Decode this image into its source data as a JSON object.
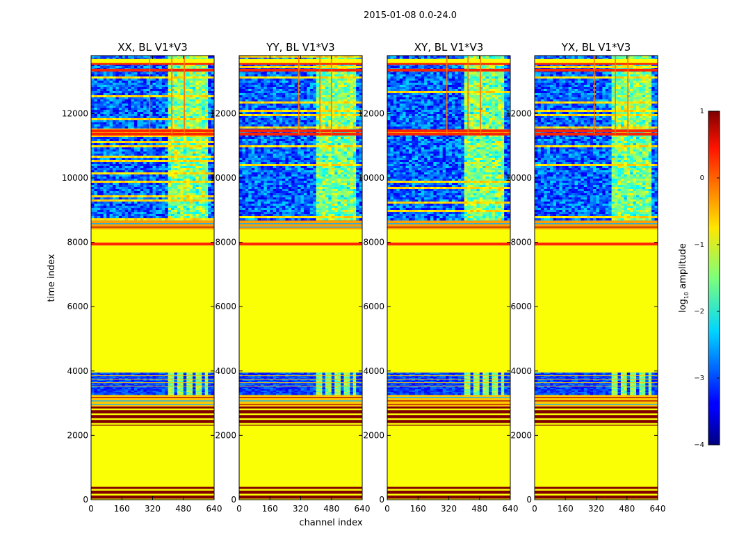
{
  "chart_data": {
    "type": "heatmap",
    "suptitle": "2015-01-08 0.0-24.0",
    "xlabel": "channel index",
    "ylabel": "time index",
    "x_ticks": [
      0,
      160,
      320,
      480,
      640
    ],
    "y_ticks": [
      0,
      2000,
      4000,
      6000,
      8000,
      10000,
      12000
    ],
    "xlim": [
      0,
      640
    ],
    "ylim": [
      0,
      13800
    ],
    "colormap": "jet",
    "colorbar": {
      "label": "log10 amplitude",
      "label_base": "log",
      "label_sub": "10",
      "label_rest": " amplitude",
      "range": [
        -4,
        1
      ],
      "ticks": [
        1,
        0,
        -1,
        -2,
        -3,
        -4
      ],
      "tick_labels": [
        "1",
        "0",
        "−1",
        "−2",
        "−3",
        "−4"
      ]
    },
    "panels": [
      {
        "title": "XX, BL V1*V3",
        "y_labels": [
          "0",
          "2000",
          "4000",
          "6000",
          "8000",
          "10000",
          "12000"
        ],
        "feature_channels": [
          305,
          420,
          485
        ]
      },
      {
        "title": "YY, BL V1*V3",
        "y_labels": [
          "0",
          "2000",
          "4000",
          "6000",
          "8000",
          "10000",
          "12000"
        ],
        "feature_channels": [
          310,
          420,
          480
        ]
      },
      {
        "title": "XY, BL V1*V3",
        "y_labels": [
          "0",
          "2000",
          "4000",
          "6000",
          "8000",
          "10000",
          "12000"
        ],
        "feature_channels": [
          310,
          420,
          485
        ]
      },
      {
        "title": "YX, BL V1*V3",
        "y_labels": [
          "0",
          "2000",
          "4000",
          "6000",
          "8000",
          "10000",
          "12000"
        ],
        "feature_channels": [
          310,
          420,
          485
        ]
      }
    ],
    "x_tick_labels": [
      "0",
      "160",
      "320",
      "480",
      "640"
    ],
    "time_bands": [
      {
        "from": 0,
        "to": 400,
        "value": 1.0,
        "pattern": "stripes-dark"
      },
      {
        "from": 400,
        "to": 2300,
        "value": -0.9
      },
      {
        "from": 2300,
        "to": 2900,
        "value": 1.0,
        "pattern": "stripes-dark"
      },
      {
        "from": 2900,
        "to": 3300,
        "value": -0.6,
        "pattern": "stripes-thin"
      },
      {
        "from": 3300,
        "to": 3950,
        "value": -3.2,
        "pattern": "noise-block"
      },
      {
        "from": 3950,
        "to": 7900,
        "value": -0.9
      },
      {
        "from": 7900,
        "to": 7990,
        "value": 0.2
      },
      {
        "from": 7990,
        "to": 8400,
        "value": -0.9
      },
      {
        "from": 8400,
        "to": 8700,
        "value": -0.4,
        "pattern": "stripes-thin"
      },
      {
        "from": 8700,
        "to": 13800,
        "value": -3.0,
        "pattern": "noise-rfi"
      }
    ]
  }
}
